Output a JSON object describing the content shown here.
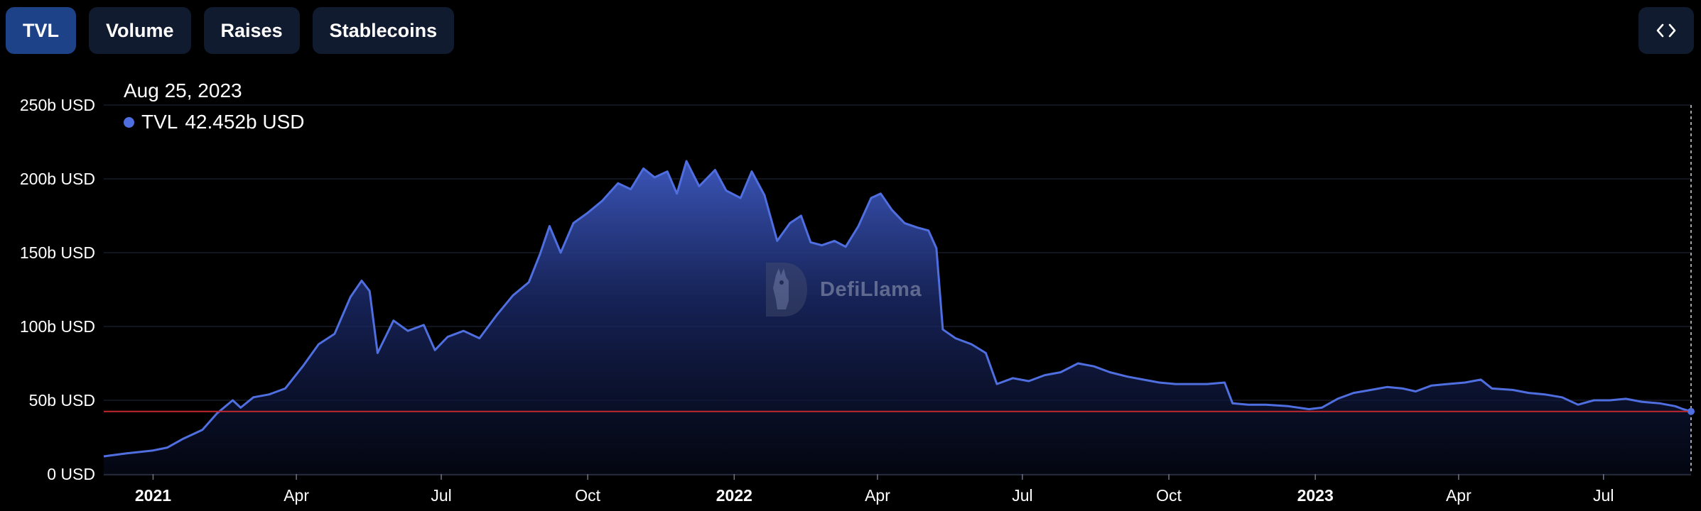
{
  "tabs": [
    {
      "label": "TVL",
      "active": true
    },
    {
      "label": "Volume",
      "active": false
    },
    {
      "label": "Raises",
      "active": false
    },
    {
      "label": "Stablecoins",
      "active": false
    }
  ],
  "embed_icon": "code-brackets-icon",
  "tooltip": {
    "date": "Aug 25, 2023",
    "series": "TVL",
    "value": "42.452b USD"
  },
  "watermark": {
    "text": "DefiLlama",
    "icon": "llama-logo-icon"
  },
  "colors": {
    "background": "#000000",
    "line": "#4f6fe0",
    "marker_line": "#c0282d",
    "active_tab": "#1d4287",
    "tab": "#111b2f"
  },
  "chart_data": {
    "type": "area",
    "series": [
      {
        "name": "TVL",
        "unit": "b USD",
        "points": [
          [
            "2020-12-01",
            12
          ],
          [
            "2020-12-15",
            14
          ],
          [
            "2021-01-01",
            16
          ],
          [
            "2021-01-10",
            18
          ],
          [
            "2021-01-20",
            24
          ],
          [
            "2021-02-01",
            30
          ],
          [
            "2021-02-10",
            41
          ],
          [
            "2021-02-20",
            50
          ],
          [
            "2021-02-25",
            45
          ],
          [
            "2021-03-05",
            52
          ],
          [
            "2021-03-15",
            54
          ],
          [
            "2021-03-25",
            58
          ],
          [
            "2021-04-05",
            73
          ],
          [
            "2021-04-15",
            88
          ],
          [
            "2021-04-25",
            95
          ],
          [
            "2021-05-05",
            120
          ],
          [
            "2021-05-12",
            131
          ],
          [
            "2021-05-17",
            124
          ],
          [
            "2021-05-22",
            82
          ],
          [
            "2021-06-01",
            104
          ],
          [
            "2021-06-10",
            97
          ],
          [
            "2021-06-20",
            101
          ],
          [
            "2021-06-27",
            84
          ],
          [
            "2021-07-05",
            93
          ],
          [
            "2021-07-15",
            97
          ],
          [
            "2021-07-25",
            92
          ],
          [
            "2021-08-05",
            108
          ],
          [
            "2021-08-15",
            121
          ],
          [
            "2021-08-25",
            130
          ],
          [
            "2021-09-01",
            149
          ],
          [
            "2021-09-07",
            168
          ],
          [
            "2021-09-14",
            150
          ],
          [
            "2021-09-22",
            170
          ],
          [
            "2021-10-01",
            177
          ],
          [
            "2021-10-10",
            185
          ],
          [
            "2021-10-20",
            197
          ],
          [
            "2021-10-28",
            193
          ],
          [
            "2021-11-05",
            207
          ],
          [
            "2021-11-12",
            201
          ],
          [
            "2021-11-20",
            205
          ],
          [
            "2021-11-26",
            190
          ],
          [
            "2021-12-02",
            212
          ],
          [
            "2021-12-10",
            195
          ],
          [
            "2021-12-20",
            206
          ],
          [
            "2021-12-27",
            192
          ],
          [
            "2022-01-05",
            187
          ],
          [
            "2022-01-12",
            205
          ],
          [
            "2022-01-20",
            189
          ],
          [
            "2022-01-28",
            158
          ],
          [
            "2022-02-05",
            170
          ],
          [
            "2022-02-12",
            175
          ],
          [
            "2022-02-18",
            157
          ],
          [
            "2022-02-25",
            155
          ],
          [
            "2022-03-05",
            158
          ],
          [
            "2022-03-12",
            154
          ],
          [
            "2022-03-20",
            168
          ],
          [
            "2022-03-28",
            187
          ],
          [
            "2022-04-03",
            190
          ],
          [
            "2022-04-10",
            179
          ],
          [
            "2022-04-18",
            170
          ],
          [
            "2022-04-26",
            167
          ],
          [
            "2022-05-03",
            165
          ],
          [
            "2022-05-08",
            153
          ],
          [
            "2022-05-12",
            98
          ],
          [
            "2022-05-20",
            92
          ],
          [
            "2022-05-30",
            88
          ],
          [
            "2022-06-08",
            82
          ],
          [
            "2022-06-15",
            61
          ],
          [
            "2022-06-25",
            65
          ],
          [
            "2022-07-05",
            63
          ],
          [
            "2022-07-15",
            67
          ],
          [
            "2022-07-25",
            69
          ],
          [
            "2022-08-05",
            75
          ],
          [
            "2022-08-15",
            73
          ],
          [
            "2022-08-25",
            69
          ],
          [
            "2022-09-05",
            66
          ],
          [
            "2022-09-15",
            64
          ],
          [
            "2022-09-25",
            62
          ],
          [
            "2022-10-05",
            61
          ],
          [
            "2022-10-15",
            61
          ],
          [
            "2022-10-25",
            61
          ],
          [
            "2022-11-05",
            62
          ],
          [
            "2022-11-10",
            48
          ],
          [
            "2022-11-20",
            47
          ],
          [
            "2022-12-01",
            47
          ],
          [
            "2022-12-15",
            46
          ],
          [
            "2022-12-28",
            44
          ],
          [
            "2023-01-05",
            45
          ],
          [
            "2023-01-15",
            51
          ],
          [
            "2023-01-25",
            55
          ],
          [
            "2023-02-05",
            57
          ],
          [
            "2023-02-15",
            59
          ],
          [
            "2023-02-25",
            58
          ],
          [
            "2023-03-05",
            56
          ],
          [
            "2023-03-15",
            60
          ],
          [
            "2023-03-25",
            61
          ],
          [
            "2023-04-05",
            62
          ],
          [
            "2023-04-15",
            64
          ],
          [
            "2023-04-22",
            58
          ],
          [
            "2023-05-05",
            57
          ],
          [
            "2023-05-15",
            55
          ],
          [
            "2023-05-25",
            54
          ],
          [
            "2023-06-05",
            52
          ],
          [
            "2023-06-15",
            47
          ],
          [
            "2023-06-25",
            50
          ],
          [
            "2023-07-05",
            50
          ],
          [
            "2023-07-15",
            51
          ],
          [
            "2023-07-25",
            49
          ],
          [
            "2023-08-05",
            48
          ],
          [
            "2023-08-15",
            46
          ],
          [
            "2023-08-20",
            44
          ],
          [
            "2023-08-25",
            42.452
          ]
        ]
      }
    ],
    "marker": {
      "date": "2023-08-25",
      "value": 42.452
    },
    "y_ticks": [
      "0 USD",
      "50b USD",
      "100b USD",
      "150b USD",
      "200b USD",
      "250b USD"
    ],
    "y_values": [
      0,
      50,
      100,
      150,
      200,
      250
    ],
    "ylim": [
      0,
      250
    ],
    "x_ticks": [
      {
        "label": "2021",
        "date": "2021-01-01",
        "bold": true
      },
      {
        "label": "Apr",
        "date": "2021-04-01",
        "bold": false
      },
      {
        "label": "Jul",
        "date": "2021-07-01",
        "bold": false
      },
      {
        "label": "Oct",
        "date": "2021-10-01",
        "bold": false
      },
      {
        "label": "2022",
        "date": "2022-01-01",
        "bold": true
      },
      {
        "label": "Apr",
        "date": "2022-04-01",
        "bold": false
      },
      {
        "label": "Jul",
        "date": "2022-07-01",
        "bold": false
      },
      {
        "label": "Oct",
        "date": "2022-10-01",
        "bold": false
      },
      {
        "label": "2023",
        "date": "2023-01-01",
        "bold": true
      },
      {
        "label": "Apr",
        "date": "2023-04-01",
        "bold": false
      },
      {
        "label": "Jul",
        "date": "2023-07-01",
        "bold": false
      }
    ],
    "xlim": [
      "2020-12-01",
      "2023-08-25"
    ],
    "grid": true,
    "legend": "tooltip top-left"
  }
}
